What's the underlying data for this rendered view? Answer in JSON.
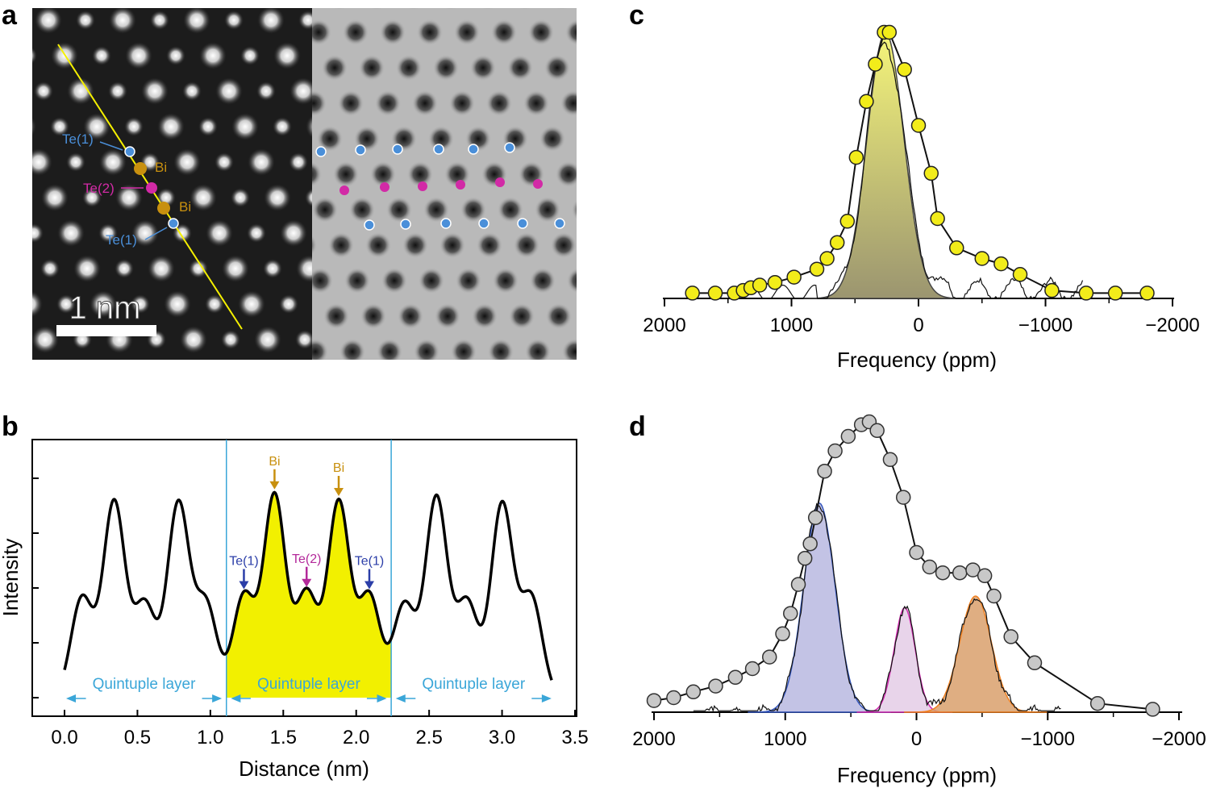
{
  "panels": {
    "a": "a",
    "b": "b",
    "c": "c",
    "d": "d"
  },
  "panel_a": {
    "scale_bar_label": "1 nm",
    "labels": {
      "te1_top": "Te(1)",
      "bi_top": "Bi",
      "te2": "Te(2)",
      "bi_bottom": "Bi",
      "te1_bottom": "Te(1)"
    },
    "colors": {
      "te1": "#4a8fd9",
      "bi": "#c8900f",
      "te2": "#d22aa6",
      "line": "#f5f000"
    }
  },
  "chart_data": [
    {
      "id": "b",
      "type": "line",
      "xlabel": "Distance (nm)",
      "ylabel": "Intensity",
      "xlim": [
        -0.3,
        3.5
      ],
      "ylim": [
        0,
        1.3
      ],
      "xticks": [
        "0.0",
        "0.5",
        "1.0",
        "1.5",
        "2.0",
        "2.5",
        "3.0",
        "3.5"
      ],
      "xtick_values": [
        0.0,
        0.5,
        1.0,
        1.5,
        2.0,
        2.5,
        3.0,
        3.5
      ],
      "layer_boundaries": [
        1.11,
        2.24
      ],
      "peaks": [
        {
          "x": 0.12,
          "y": 0.45,
          "w": 0.075
        },
        {
          "x": 0.34,
          "y": 0.88,
          "w": 0.075
        },
        {
          "x": 0.55,
          "y": 0.42,
          "w": 0.075
        },
        {
          "x": 0.78,
          "y": 0.87,
          "w": 0.075
        },
        {
          "x": 0.97,
          "y": 0.42,
          "w": 0.075
        },
        {
          "x": 1.23,
          "y": 0.46,
          "w": 0.075
        },
        {
          "x": 1.44,
          "y": 0.91,
          "w": 0.075
        },
        {
          "x": 1.66,
          "y": 0.47,
          "w": 0.075
        },
        {
          "x": 1.88,
          "y": 0.88,
          "w": 0.075
        },
        {
          "x": 2.09,
          "y": 0.46,
          "w": 0.075
        },
        {
          "x": 2.33,
          "y": 0.42,
          "w": 0.075
        },
        {
          "x": 2.55,
          "y": 0.9,
          "w": 0.075
        },
        {
          "x": 2.76,
          "y": 0.43,
          "w": 0.075
        },
        {
          "x": 3.0,
          "y": 0.87,
          "w": 0.075
        },
        {
          "x": 3.2,
          "y": 0.45,
          "w": 0.075
        }
      ],
      "annotations": [
        {
          "label": "Bi",
          "x": 1.44,
          "color": "#c8900f"
        },
        {
          "label": "Bi",
          "x": 1.88,
          "color": "#c8900f"
        },
        {
          "label": "Te(1)",
          "x": 1.23,
          "color": "#2b3ea8"
        },
        {
          "label": "Te(2)",
          "x": 1.66,
          "color": "#b3299a"
        },
        {
          "label": "Te(1)",
          "x": 2.09,
          "color": "#2b3ea8"
        }
      ],
      "layers": [
        {
          "label": "Quintuple layer",
          "from": 0.0,
          "to": 1.09
        },
        {
          "label": "Quintuple layer",
          "from": 1.13,
          "to": 2.22
        },
        {
          "label": "Quintuple layer",
          "from": 2.26,
          "to": 3.35
        }
      ],
      "fill_color": "#f2f000"
    },
    {
      "id": "c",
      "type": "scatter",
      "xlabel": "Frequency (ppm)",
      "xlim": [
        2000,
        -2000
      ],
      "xticks": [
        "2000",
        "1000",
        "0",
        "−1000",
        "−2000"
      ],
      "xtick_values": [
        2000,
        1000,
        0,
        -1000,
        -2000
      ],
      "ylim": [
        0,
        1.0
      ],
      "points": [
        {
          "x": 1780,
          "y": 0.02
        },
        {
          "x": 1600,
          "y": 0.02
        },
        {
          "x": 1450,
          "y": 0.02
        },
        {
          "x": 1380,
          "y": 0.03
        },
        {
          "x": 1320,
          "y": 0.04
        },
        {
          "x": 1250,
          "y": 0.05
        },
        {
          "x": 1130,
          "y": 0.06
        },
        {
          "x": 980,
          "y": 0.08
        },
        {
          "x": 800,
          "y": 0.11
        },
        {
          "x": 720,
          "y": 0.15
        },
        {
          "x": 640,
          "y": 0.21
        },
        {
          "x": 560,
          "y": 0.29
        },
        {
          "x": 490,
          "y": 0.53
        },
        {
          "x": 410,
          "y": 0.74
        },
        {
          "x": 340,
          "y": 0.88
        },
        {
          "x": 270,
          "y": 1.0
        },
        {
          "x": 230,
          "y": 1.0
        },
        {
          "x": 110,
          "y": 0.86
        },
        {
          "x": 0,
          "y": 0.65
        },
        {
          "x": -100,
          "y": 0.47
        },
        {
          "x": -150,
          "y": 0.3
        },
        {
          "x": -300,
          "y": 0.19
        },
        {
          "x": -500,
          "y": 0.15
        },
        {
          "x": -650,
          "y": 0.13
        },
        {
          "x": -800,
          "y": 0.09
        },
        {
          "x": -1050,
          "y": 0.03
        },
        {
          "x": -1320,
          "y": 0.02
        },
        {
          "x": -1550,
          "y": 0.02
        },
        {
          "x": -1800,
          "y": 0.02
        }
      ],
      "fit": {
        "center": 260,
        "sigma": 145,
        "amp": 1.0
      },
      "point_color": "#f2ec1a",
      "fill_color": "#e8e88a"
    },
    {
      "id": "d",
      "type": "scatter",
      "xlabel": "Frequency (ppm)",
      "xlim": [
        2000,
        -2000
      ],
      "xticks": [
        "2000",
        "1000",
        "0",
        "−1000",
        "−2000"
      ],
      "xtick_values": [
        2000,
        1000,
        0,
        -1000,
        -2000
      ],
      "ylim": [
        0,
        1.0
      ],
      "points": [
        {
          "x": 2000,
          "y": 0.04
        },
        {
          "x": 1850,
          "y": 0.05
        },
        {
          "x": 1700,
          "y": 0.07
        },
        {
          "x": 1530,
          "y": 0.09
        },
        {
          "x": 1380,
          "y": 0.12
        },
        {
          "x": 1250,
          "y": 0.15
        },
        {
          "x": 1120,
          "y": 0.19
        },
        {
          "x": 1020,
          "y": 0.27
        },
        {
          "x": 960,
          "y": 0.34
        },
        {
          "x": 900,
          "y": 0.44
        },
        {
          "x": 850,
          "y": 0.53
        },
        {
          "x": 810,
          "y": 0.58
        },
        {
          "x": 770,
          "y": 0.67
        },
        {
          "x": 700,
          "y": 0.83
        },
        {
          "x": 620,
          "y": 0.9
        },
        {
          "x": 520,
          "y": 0.95
        },
        {
          "x": 420,
          "y": 0.99
        },
        {
          "x": 360,
          "y": 1.0
        },
        {
          "x": 300,
          "y": 0.97
        },
        {
          "x": 200,
          "y": 0.87
        },
        {
          "x": 100,
          "y": 0.74
        },
        {
          "x": 0,
          "y": 0.55
        },
        {
          "x": -100,
          "y": 0.5
        },
        {
          "x": -200,
          "y": 0.48
        },
        {
          "x": -330,
          "y": 0.48
        },
        {
          "x": -430,
          "y": 0.49
        },
        {
          "x": -520,
          "y": 0.47
        },
        {
          "x": -590,
          "y": 0.4
        },
        {
          "x": -720,
          "y": 0.26
        },
        {
          "x": -900,
          "y": 0.17
        },
        {
          "x": -1380,
          "y": 0.03
        },
        {
          "x": -1800,
          "y": 0.01
        }
      ],
      "components": [
        {
          "center": 740,
          "sigma": 120,
          "amp": 0.72,
          "color": "#b8b8e0",
          "edge": "#3355bb"
        },
        {
          "center": 90,
          "sigma": 80,
          "amp": 0.36,
          "color": "#e4cde6",
          "edge": "#d12ab0"
        },
        {
          "center": -450,
          "sigma": 120,
          "amp": 0.4,
          "color": "#d9a06c",
          "edge": "#f08020"
        }
      ],
      "point_color": "#c8c8c8"
    }
  ]
}
